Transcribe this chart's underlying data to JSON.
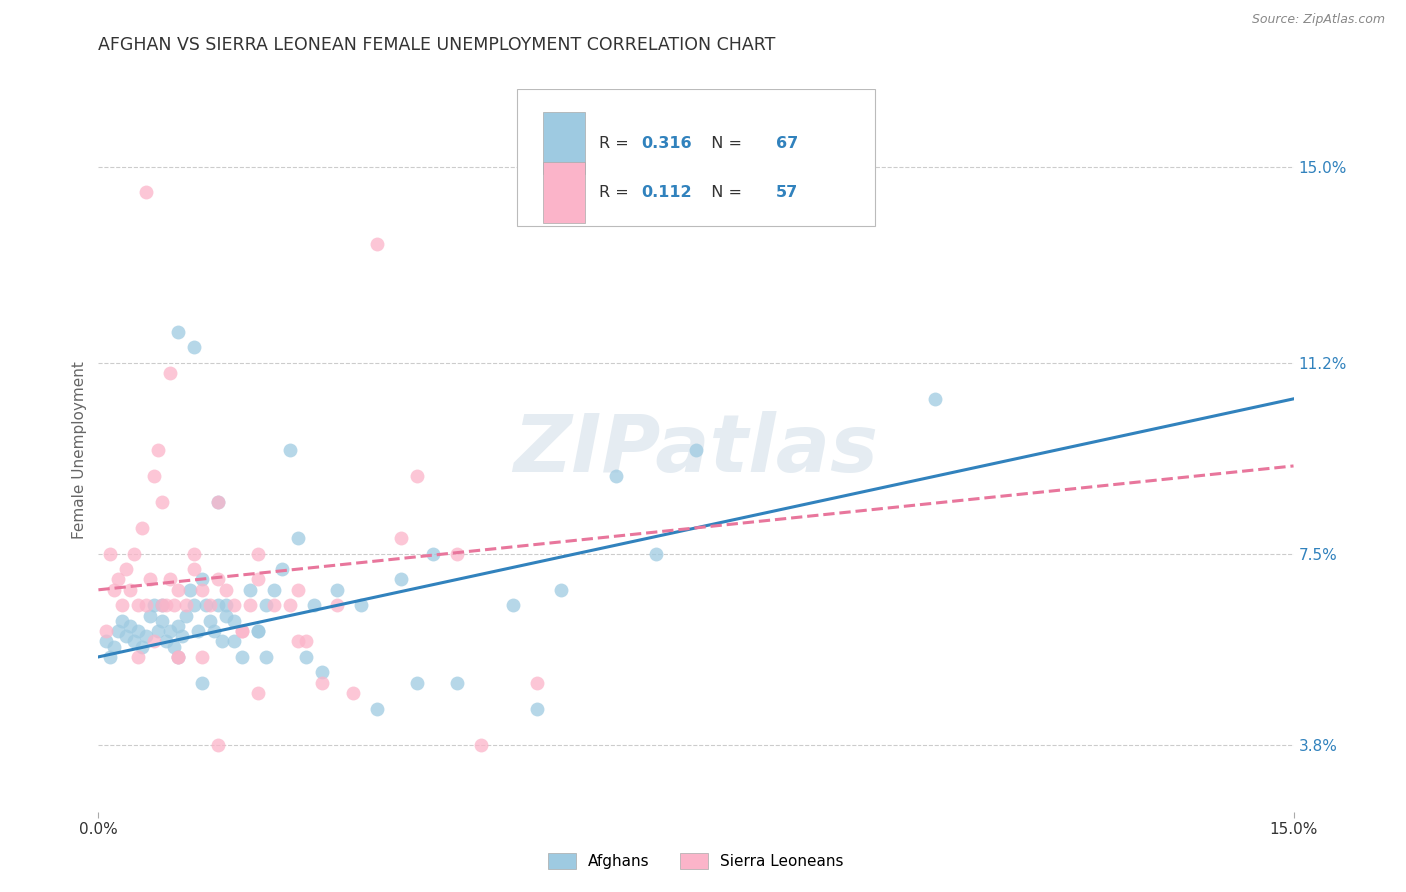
{
  "title": "AFGHAN VS SIERRA LEONEAN FEMALE UNEMPLOYMENT CORRELATION CHART",
  "source": "Source: ZipAtlas.com",
  "ylabel_label": "Female Unemployment",
  "right_ytick_vals": [
    3.8,
    7.5,
    11.2,
    15.0
  ],
  "right_ytick_labels": [
    "3.8%",
    "7.5%",
    "11.2%",
    "15.0%"
  ],
  "xmin": 0.0,
  "xmax": 15.0,
  "ymin": 2.5,
  "ymax": 16.5,
  "legend": {
    "afghan_R": "0.316",
    "afghan_N": "67",
    "sierra_R": "0.112",
    "sierra_N": "57"
  },
  "watermark": "ZIPatlas",
  "afghan_color": "#9ecae1",
  "sierra_color": "#fbb4c9",
  "trend_afghan_color": "#3182bd",
  "trend_sierra_color": "#e8769c",
  "background_color": "#ffffff",
  "grid_color": "#cccccc",
  "title_color": "#333333",
  "axis_label_color": "#666666",
  "right_tick_color": "#3182bd",
  "value_text_color": "#3182bd",
  "label_text_color": "#333333",
  "afghan_scatter_x": [
    0.1,
    0.15,
    0.2,
    0.25,
    0.3,
    0.35,
    0.4,
    0.45,
    0.5,
    0.55,
    0.6,
    0.65,
    0.7,
    0.75,
    0.8,
    0.85,
    0.9,
    0.95,
    1.0,
    1.05,
    1.1,
    1.15,
    1.2,
    1.25,
    1.3,
    1.35,
    1.4,
    1.45,
    1.5,
    1.55,
    1.6,
    1.7,
    1.8,
    1.9,
    2.0,
    2.1,
    2.2,
    2.3,
    2.5,
    2.7,
    3.0,
    3.3,
    3.8,
    4.2,
    5.2,
    5.8,
    6.5,
    7.0,
    1.0,
    1.2,
    1.5,
    1.6,
    2.0,
    2.4,
    2.6,
    3.5,
    4.5,
    0.8,
    1.0,
    1.3,
    1.7,
    2.1,
    2.8,
    4.0,
    5.5,
    10.5,
    7.5
  ],
  "afghan_scatter_y": [
    5.8,
    5.5,
    5.7,
    6.0,
    6.2,
    5.9,
    6.1,
    5.8,
    6.0,
    5.7,
    5.9,
    6.3,
    6.5,
    6.0,
    6.2,
    5.8,
    6.0,
    5.7,
    6.1,
    5.9,
    6.3,
    6.8,
    6.5,
    6.0,
    7.0,
    6.5,
    6.2,
    6.0,
    6.5,
    5.8,
    6.3,
    6.2,
    5.5,
    6.8,
    6.0,
    6.5,
    6.8,
    7.2,
    7.8,
    6.5,
    6.8,
    6.5,
    7.0,
    7.5,
    6.5,
    6.8,
    9.0,
    7.5,
    11.8,
    11.5,
    8.5,
    6.5,
    6.0,
    9.5,
    5.5,
    4.5,
    5.0,
    6.5,
    5.5,
    5.0,
    5.8,
    5.5,
    5.2,
    5.0,
    4.5,
    10.5,
    9.5
  ],
  "sierra_scatter_x": [
    0.1,
    0.15,
    0.2,
    0.25,
    0.3,
    0.35,
    0.4,
    0.45,
    0.5,
    0.55,
    0.6,
    0.65,
    0.7,
    0.75,
    0.8,
    0.85,
    0.9,
    0.95,
    1.0,
    1.1,
    1.2,
    1.3,
    1.4,
    1.5,
    1.6,
    1.7,
    1.8,
    1.9,
    2.0,
    2.2,
    2.4,
    2.6,
    3.0,
    3.5,
    1.2,
    2.8,
    0.5,
    0.7,
    1.0,
    1.5,
    2.0,
    3.8,
    4.5,
    4.8,
    0.6,
    0.9,
    1.3,
    1.8,
    2.5,
    3.2,
    5.5,
    1.0,
    1.5,
    2.5,
    4.0,
    0.8,
    2.0
  ],
  "sierra_scatter_y": [
    6.0,
    7.5,
    6.8,
    7.0,
    6.5,
    7.2,
    6.8,
    7.5,
    6.5,
    8.0,
    6.5,
    7.0,
    9.0,
    9.5,
    8.5,
    6.5,
    7.0,
    6.5,
    6.8,
    6.5,
    7.2,
    6.8,
    6.5,
    7.0,
    6.8,
    6.5,
    6.0,
    6.5,
    7.5,
    6.5,
    6.5,
    5.8,
    6.5,
    13.5,
    7.5,
    5.0,
    5.5,
    5.8,
    5.5,
    3.8,
    4.8,
    7.8,
    7.5,
    3.8,
    14.5,
    11.0,
    5.5,
    6.0,
    5.8,
    4.8,
    5.0,
    5.5,
    8.5,
    6.8,
    9.0,
    6.5,
    7.0
  ],
  "trend_afghan_x0": 0.0,
  "trend_afghan_y0": 5.5,
  "trend_afghan_x1": 15.0,
  "trend_afghan_y1": 10.5,
  "trend_sierra_x0": 0.0,
  "trend_sierra_y0": 6.8,
  "trend_sierra_x1": 15.0,
  "trend_sierra_y1": 9.2
}
